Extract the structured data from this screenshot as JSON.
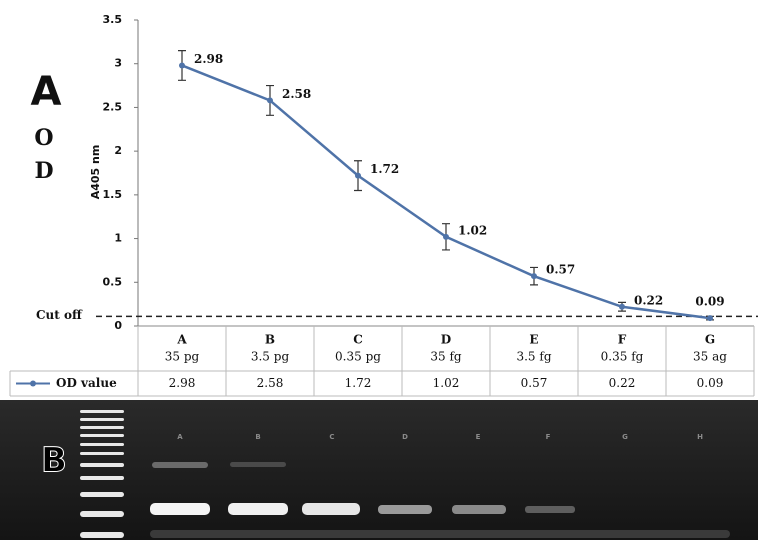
{
  "chart_data": {
    "type": "line",
    "ylabel": "A405 nm",
    "categories": [
      "A",
      "B",
      "C",
      "D",
      "E",
      "F",
      "G"
    ],
    "amounts": [
      "35 pg",
      "3.5 pg",
      "0.35 pg",
      "35 fg",
      "3.5 fg",
      "0.35 fg",
      "35 ag"
    ],
    "series": [
      {
        "name": "OD value",
        "color": "#4f73a8",
        "values": [
          2.98,
          2.58,
          1.72,
          1.02,
          0.57,
          0.22,
          0.09
        ],
        "errors": [
          0.17,
          0.17,
          0.17,
          0.15,
          0.1,
          0.05,
          0.02
        ]
      }
    ],
    "ylim": [
      0,
      3.5
    ],
    "yticks": [
      0,
      0.5,
      1,
      1.5,
      2,
      2.5,
      3,
      3.5
    ],
    "cutoff": {
      "label": "Cut off",
      "value": 0.11
    }
  },
  "panel_labels": [
    "A",
    "B"
  ],
  "side_letters": [
    "O",
    "D"
  ],
  "gel": {
    "lane_labels": [
      "A",
      "B",
      "C",
      "D",
      "E",
      "F",
      "G",
      "H"
    ]
  }
}
